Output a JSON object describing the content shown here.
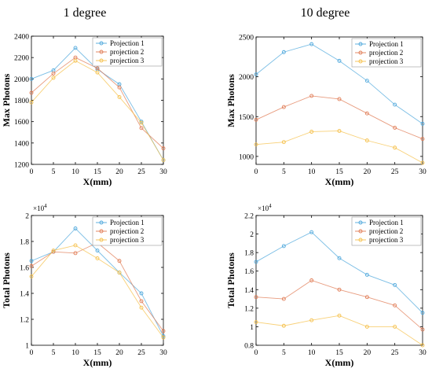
{
  "headings": [
    "1 degree",
    "10 degree"
  ],
  "colors": [
    "#4fa8dc",
    "#e07b54",
    "#f5c04a"
  ],
  "chart_data": [
    {
      "type": "line",
      "heading": "1 degree",
      "xlabel": "X(mm)",
      "ylabel": "Max Photons",
      "x": [
        0,
        5,
        10,
        15,
        20,
        25,
        30
      ],
      "xlim": [
        0,
        30
      ],
      "ylim": [
        1200,
        2400
      ],
      "xticks": [
        "0",
        "5",
        "10",
        "15",
        "20",
        "25",
        "30"
      ],
      "yticks": [
        "1200",
        "1400",
        "1600",
        "1800",
        "2000",
        "2200",
        "2400"
      ],
      "exponent": "",
      "legend_position": "top-right",
      "series": [
        {
          "name": "Projection 1",
          "values": [
            2000,
            2080,
            2290,
            2090,
            1950,
            1600,
            1240
          ]
        },
        {
          "name": "projection 2",
          "values": [
            1870,
            2050,
            2200,
            2100,
            1920,
            1540,
            1350
          ]
        },
        {
          "name": "projection 3",
          "values": [
            1780,
            2010,
            2170,
            2060,
            1830,
            1590,
            1240
          ]
        }
      ]
    },
    {
      "type": "line",
      "heading": "10 degree",
      "xlabel": "X(mm)",
      "ylabel": "Max Photons",
      "x": [
        0,
        5,
        10,
        15,
        20,
        25,
        30
      ],
      "xlim": [
        0,
        30
      ],
      "ylim": [
        900,
        2500
      ],
      "xticks": [
        "0",
        "5",
        "10",
        "15",
        "20",
        "25",
        "30"
      ],
      "yticks": [
        "1000",
        "1500",
        "2000",
        "2500"
      ],
      "exponent": "",
      "legend_position": "top-right",
      "series": [
        {
          "name": "Projection 1",
          "values": [
            2030,
            2310,
            2410,
            2200,
            1950,
            1650,
            1410
          ]
        },
        {
          "name": "projection 2",
          "values": [
            1460,
            1620,
            1760,
            1720,
            1540,
            1360,
            1220
          ]
        },
        {
          "name": "projection 3",
          "values": [
            1150,
            1180,
            1310,
            1320,
            1200,
            1110,
            920
          ]
        }
      ]
    },
    {
      "type": "line",
      "heading": "",
      "xlabel": "X(mm)",
      "ylabel": "Total Photons",
      "x": [
        0,
        5,
        10,
        15,
        20,
        25,
        30
      ],
      "xlim": [
        0,
        30
      ],
      "ylim": [
        1.0,
        2.0
      ],
      "xticks": [
        "0",
        "5",
        "10",
        "15",
        "20",
        "25",
        "30"
      ],
      "yticks": [
        "1",
        "1.2",
        "1.4",
        "1.6",
        "1.8",
        "2"
      ],
      "exponent": "×10",
      "exponent_power": "4",
      "legend_position": "top-right",
      "series": [
        {
          "name": "Projection 1",
          "values": [
            1.65,
            1.72,
            1.9,
            1.73,
            1.56,
            1.4,
            1.07
          ]
        },
        {
          "name": "projection 2",
          "values": [
            1.61,
            1.72,
            1.71,
            1.79,
            1.65,
            1.34,
            1.11
          ]
        },
        {
          "name": "projection 3",
          "values": [
            1.53,
            1.73,
            1.77,
            1.67,
            1.56,
            1.29,
            1.06
          ]
        }
      ]
    },
    {
      "type": "line",
      "heading": "",
      "xlabel": "X(mm)",
      "ylabel": "Total Photons",
      "x": [
        0,
        5,
        10,
        15,
        20,
        25,
        30
      ],
      "xlim": [
        0,
        30
      ],
      "ylim": [
        0.8,
        2.2
      ],
      "xticks": [
        "0",
        "5",
        "10",
        "15",
        "20",
        "25",
        "30"
      ],
      "yticks": [
        "0.8",
        "1",
        "1.2",
        "1.4",
        "1.6",
        "1.8",
        "2",
        "2.2"
      ],
      "exponent": "×10",
      "exponent_power": "4",
      "legend_position": "top-right",
      "series": [
        {
          "name": "Projection 1",
          "values": [
            1.7,
            1.87,
            2.02,
            1.74,
            1.56,
            1.45,
            1.15
          ]
        },
        {
          "name": "projection 2",
          "values": [
            1.32,
            1.3,
            1.5,
            1.4,
            1.32,
            1.23,
            0.97
          ]
        },
        {
          "name": "projection 3",
          "values": [
            1.05,
            1.01,
            1.07,
            1.12,
            1.0,
            1.0,
            0.8
          ]
        }
      ]
    }
  ]
}
